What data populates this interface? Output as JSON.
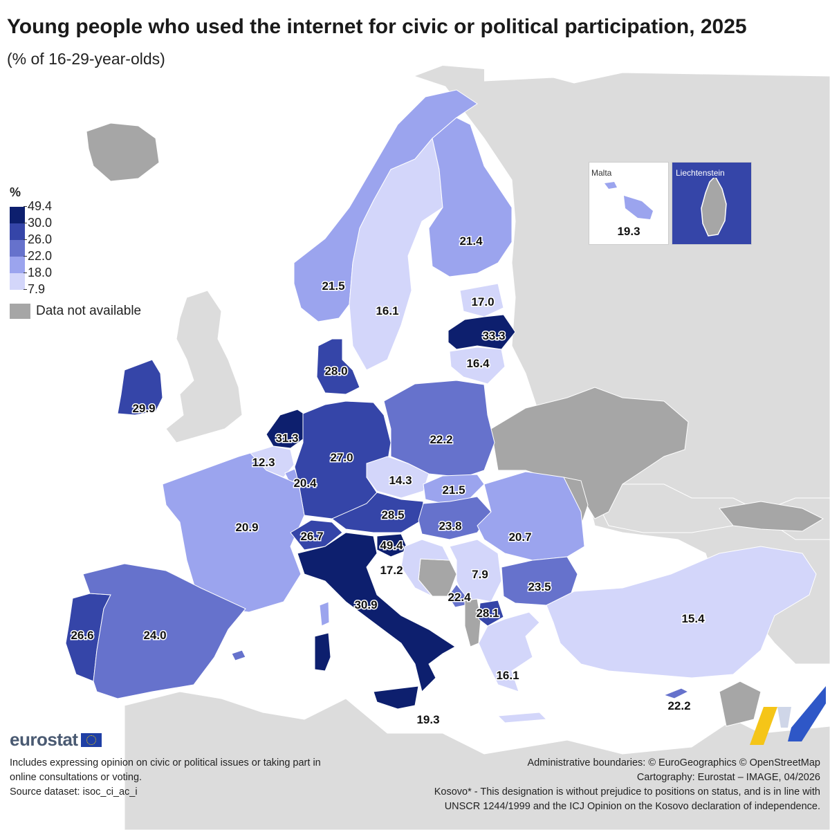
{
  "title": "Young people who used the internet for civic or political participation, 2025",
  "subtitle": "(% of 16-29-year-olds)",
  "legend": {
    "unit": "%",
    "breaks": [
      "49.4",
      "30.0",
      "26.0",
      "22.0",
      "18.0",
      "7.9"
    ],
    "class_colors": [
      "#0d1f6e",
      "#3545a8",
      "#6672cc",
      "#9ba4ee",
      "#d3d6fa"
    ],
    "na_label": "Data not available",
    "na_color": "#a6a6a6"
  },
  "regions": [
    {
      "name": "Norway",
      "value": "21.5"
    },
    {
      "name": "Sweden",
      "value": "16.1"
    },
    {
      "name": "Finland",
      "value": "21.4"
    },
    {
      "name": "Estonia",
      "value": "17.0"
    },
    {
      "name": "Latvia",
      "value": "33.3"
    },
    {
      "name": "Lithuania",
      "value": "16.4"
    },
    {
      "name": "Denmark",
      "value": "28.0"
    },
    {
      "name": "Ireland",
      "value": "29.9"
    },
    {
      "name": "Netherlands",
      "value": "31.3"
    },
    {
      "name": "Belgium",
      "value": "12.3"
    },
    {
      "name": "Luxembourg",
      "value": "20.4"
    },
    {
      "name": "Germany",
      "value": "27.0"
    },
    {
      "name": "Poland",
      "value": "22.2"
    },
    {
      "name": "Czechia",
      "value": "14.3"
    },
    {
      "name": "Slovakia",
      "value": "21.5"
    },
    {
      "name": "Austria",
      "value": "28.5"
    },
    {
      "name": "Hungary",
      "value": "23.8"
    },
    {
      "name": "Romania",
      "value": "20.7"
    },
    {
      "name": "France",
      "value": "20.9"
    },
    {
      "name": "Switzerland",
      "value": "26.7"
    },
    {
      "name": "Slovenia",
      "value": "49.4"
    },
    {
      "name": "Croatia",
      "value": "17.2"
    },
    {
      "name": "Serbia",
      "value": "7.9"
    },
    {
      "name": "Bulgaria",
      "value": "23.5"
    },
    {
      "name": "Montenegro",
      "value": "22.4"
    },
    {
      "name": "North Macedonia",
      "value": "28.1"
    },
    {
      "name": "Italy",
      "value": "30.9"
    },
    {
      "name": "Portugal",
      "value": "26.6"
    },
    {
      "name": "Spain",
      "value": "24.0"
    },
    {
      "name": "Greece",
      "value": "16.1"
    },
    {
      "name": "Türkiye",
      "value": "15.4"
    },
    {
      "name": "Cyprus",
      "value": "22.2"
    },
    {
      "name": "Malta",
      "value": "19.3"
    },
    {
      "name": "Liechtenstein",
      "value": ""
    }
  ],
  "insets": {
    "malta": {
      "name": "Malta",
      "value": "19.3"
    },
    "liechtenstein": {
      "name": "Liechtenstein"
    }
  },
  "logo": "eurostat",
  "note_lines": [
    "Includes expressing opinion on civic or political issues or taking part in",
    "online consultations or voting.",
    "Source dataset: isoc_ci_ac_i"
  ],
  "credits_lines": [
    "Administrative boundaries: © EuroGeographics © OpenStreetMap",
    "Cartography: Eurostat – IMAGE, 04/2026",
    "Kosovo* - This designation is without prejudice to positions on status, and is in line with",
    "UNSCR 1244/1999 and the ICJ Opinion on the Kosovo declaration of independence."
  ]
}
